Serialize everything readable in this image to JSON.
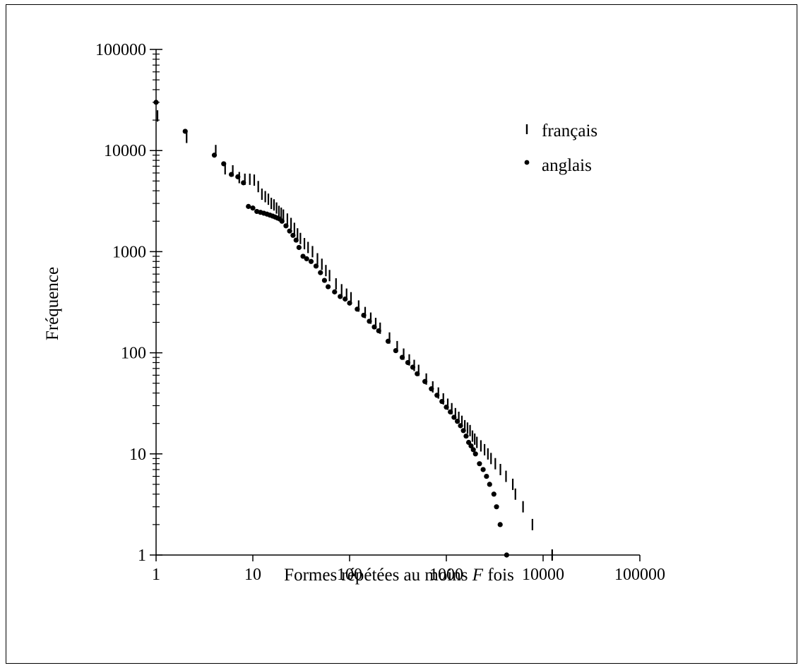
{
  "chart_data": {
    "type": "scatter",
    "title": "",
    "xlabel_parts": [
      "Formes répétées au moins ",
      "F",
      " fois"
    ],
    "ylabel": "Fréquence",
    "x_scale": "log",
    "y_scale": "log",
    "xlim": [
      1,
      100000
    ],
    "ylim": [
      1,
      100000
    ],
    "x_ticks": [
      1,
      10,
      100,
      1000,
      10000,
      100000
    ],
    "x_tick_labels": [
      "1",
      "10",
      "100",
      "1000",
      "10000",
      "100000"
    ],
    "y_ticks": [
      1,
      10,
      100,
      1000,
      10000,
      100000
    ],
    "y_tick_labels": [
      "1",
      "10",
      "100",
      "1000",
      "10000",
      "100000"
    ],
    "grid": false,
    "legend_position": "top-right",
    "series": [
      {
        "name": "français",
        "marker": "vertical-bar",
        "color": "#000000",
        "points": [
          [
            1,
            22000
          ],
          [
            2,
            13500
          ],
          [
            4,
            10000
          ],
          [
            5,
            6600
          ],
          [
            6,
            6300
          ],
          [
            7,
            5400
          ],
          [
            8,
            5200
          ],
          [
            9,
            5200
          ],
          [
            10,
            5100
          ],
          [
            11,
            4400
          ],
          [
            12,
            3700
          ],
          [
            13,
            3500
          ],
          [
            14,
            3300
          ],
          [
            15,
            3000
          ],
          [
            16,
            2900
          ],
          [
            17,
            2700
          ],
          [
            18,
            2500
          ],
          [
            19,
            2400
          ],
          [
            20,
            2300
          ],
          [
            22,
            2100
          ],
          [
            24,
            1900
          ],
          [
            26,
            1700
          ],
          [
            28,
            1500
          ],
          [
            30,
            1350
          ],
          [
            33,
            1200
          ],
          [
            36,
            1100
          ],
          [
            40,
            1000
          ],
          [
            45,
            850
          ],
          [
            50,
            750
          ],
          [
            55,
            650
          ],
          [
            60,
            580
          ],
          [
            70,
            480
          ],
          [
            80,
            420
          ],
          [
            90,
            380
          ],
          [
            100,
            350
          ],
          [
            120,
            290
          ],
          [
            140,
            250
          ],
          [
            160,
            220
          ],
          [
            180,
            195
          ],
          [
            200,
            175
          ],
          [
            250,
            140
          ],
          [
            300,
            115
          ],
          [
            350,
            97
          ],
          [
            400,
            85
          ],
          [
            450,
            75
          ],
          [
            500,
            67
          ],
          [
            600,
            55
          ],
          [
            700,
            46
          ],
          [
            800,
            40
          ],
          [
            900,
            35
          ],
          [
            1000,
            31
          ],
          [
            1100,
            28
          ],
          [
            1200,
            25
          ],
          [
            1300,
            23
          ],
          [
            1400,
            21
          ],
          [
            1500,
            19
          ],
          [
            1600,
            18
          ],
          [
            1700,
            17
          ],
          [
            1800,
            15
          ],
          [
            1900,
            14
          ],
          [
            2000,
            13
          ],
          [
            2200,
            12
          ],
          [
            2400,
            11
          ],
          [
            2600,
            10
          ],
          [
            2800,
            9
          ],
          [
            3100,
            8
          ],
          [
            3500,
            7
          ],
          [
            4000,
            6
          ],
          [
            4700,
            5
          ],
          [
            5000,
            4
          ],
          [
            6000,
            3
          ],
          [
            7500,
            2
          ],
          [
            12000,
            1
          ]
        ]
      },
      {
        "name": "anglais",
        "marker": "dot",
        "color": "#000000",
        "points": [
          [
            1,
            30000
          ],
          [
            2,
            15500
          ],
          [
            4,
            9000
          ],
          [
            5,
            7400
          ],
          [
            6,
            5800
          ],
          [
            7,
            5500
          ],
          [
            8,
            4800
          ],
          [
            9,
            2800
          ],
          [
            10,
            2700
          ],
          [
            11,
            2500
          ],
          [
            12,
            2450
          ],
          [
            13,
            2400
          ],
          [
            14,
            2350
          ],
          [
            15,
            2300
          ],
          [
            16,
            2250
          ],
          [
            17,
            2200
          ],
          [
            18,
            2150
          ],
          [
            19,
            2100
          ],
          [
            20,
            2000
          ],
          [
            22,
            1800
          ],
          [
            24,
            1600
          ],
          [
            26,
            1450
          ],
          [
            28,
            1300
          ],
          [
            30,
            1100
          ],
          [
            33,
            900
          ],
          [
            36,
            850
          ],
          [
            40,
            800
          ],
          [
            45,
            720
          ],
          [
            50,
            620
          ],
          [
            55,
            520
          ],
          [
            60,
            450
          ],
          [
            70,
            400
          ],
          [
            80,
            360
          ],
          [
            90,
            340
          ],
          [
            100,
            310
          ],
          [
            120,
            270
          ],
          [
            140,
            235
          ],
          [
            160,
            205
          ],
          [
            180,
            180
          ],
          [
            200,
            165
          ],
          [
            250,
            130
          ],
          [
            300,
            105
          ],
          [
            350,
            90
          ],
          [
            400,
            80
          ],
          [
            450,
            72
          ],
          [
            500,
            62
          ],
          [
            600,
            52
          ],
          [
            700,
            44
          ],
          [
            800,
            38
          ],
          [
            900,
            33
          ],
          [
            1000,
            29
          ],
          [
            1100,
            26
          ],
          [
            1200,
            23
          ],
          [
            1300,
            21
          ],
          [
            1400,
            19
          ],
          [
            1500,
            17
          ],
          [
            1600,
            15
          ],
          [
            1700,
            13
          ],
          [
            1800,
            12
          ],
          [
            1900,
            11
          ],
          [
            2000,
            10
          ],
          [
            2200,
            8
          ],
          [
            2400,
            7
          ],
          [
            2600,
            6
          ],
          [
            2800,
            5
          ],
          [
            3100,
            4
          ],
          [
            3300,
            3
          ],
          [
            3600,
            2
          ],
          [
            4200,
            1
          ]
        ]
      }
    ]
  }
}
